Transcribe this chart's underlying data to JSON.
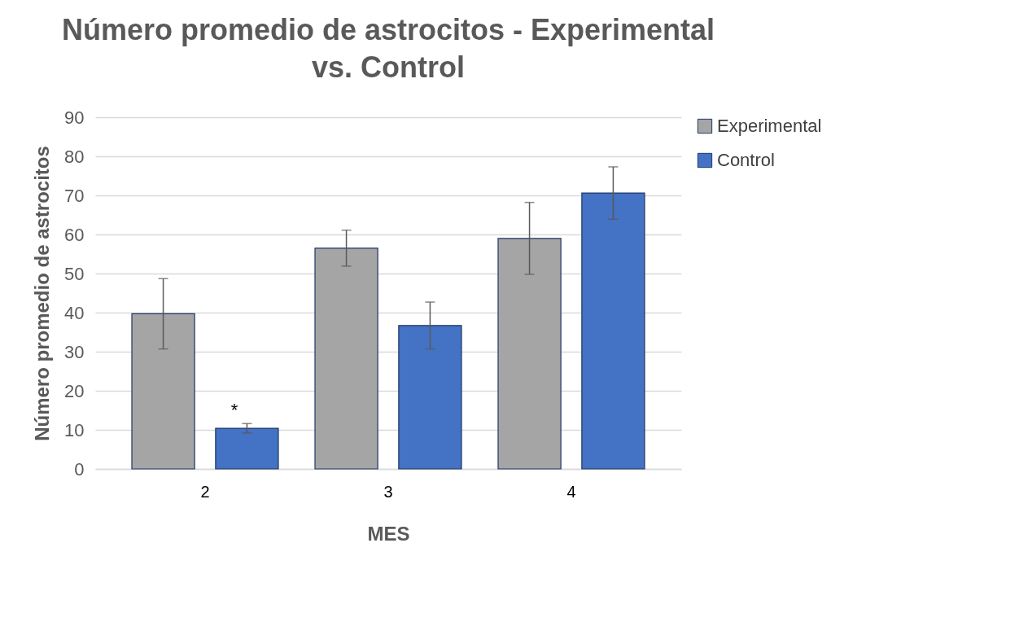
{
  "chart_data": {
    "type": "bar",
    "title": "Número promedio de astrocitos - Experimental\nvs. Control",
    "xlabel": "MES",
    "ylabel": "Número promedio de astrocitos",
    "categories": [
      "2",
      "3",
      "4"
    ],
    "series": [
      {
        "name": "Experimental",
        "color": "#a5a5a5",
        "values": [
          39.7,
          56.5,
          59.0
        ],
        "errors": [
          9.0,
          4.6,
          9.2
        ]
      },
      {
        "name": "Control",
        "color": "#4472c4",
        "values": [
          10.4,
          36.7,
          70.6
        ],
        "errors": [
          1.2,
          6.0,
          6.7
        ]
      }
    ],
    "ylim": [
      0,
      90
    ],
    "yticks": [
      0,
      10,
      20,
      30,
      40,
      50,
      60,
      70,
      80,
      90
    ],
    "grid": "y",
    "legend": "right",
    "annotations": [
      "*"
    ]
  }
}
